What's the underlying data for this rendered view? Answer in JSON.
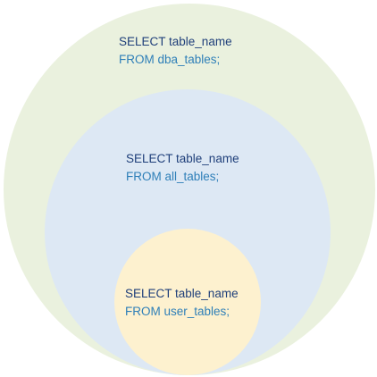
{
  "colors": {
    "outer_fill": "#eaf1de",
    "middle_fill": "#dde8f4",
    "inner_fill": "#fdf1cf",
    "text_select": "#1f3f7a",
    "text_from": "#2e7fb8"
  },
  "circles": [
    {
      "id": "dba",
      "line1": "SELECT table_name",
      "line2": "FROM dba_tables;"
    },
    {
      "id": "all",
      "line1": "SELECT table_name",
      "line2": "FROM all_tables;"
    },
    {
      "id": "user",
      "line1": "SELECT table_name",
      "line2": "FROM user_tables;"
    }
  ]
}
